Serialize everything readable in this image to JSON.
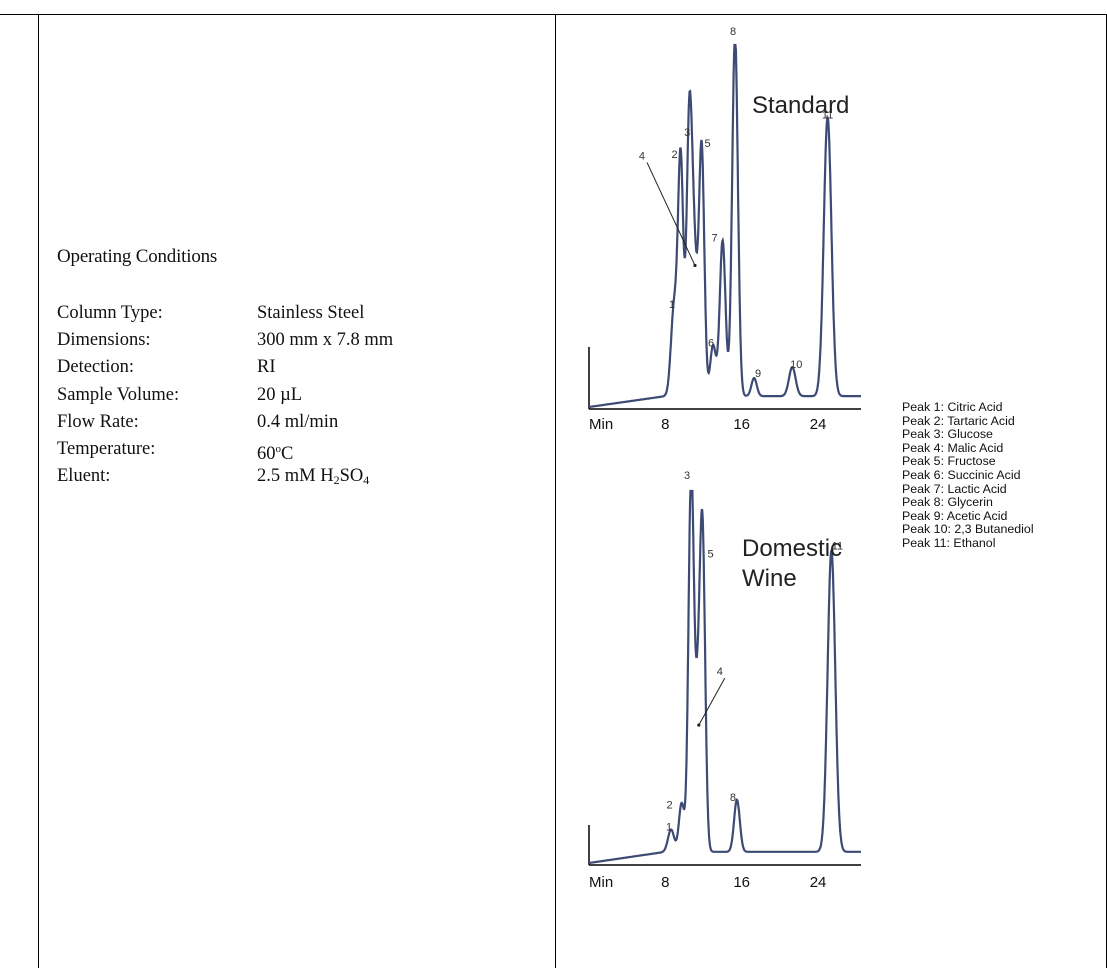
{
  "conditions": {
    "title": "Operating Conditions",
    "rows": [
      {
        "label": "Column Type:",
        "value": "Stainless Steel"
      },
      {
        "label": "Dimensions:",
        "value": "300 mm x 7.8 mm"
      },
      {
        "label": "Detection:",
        "value": "RI"
      },
      {
        "label": "Sample Volume:",
        "value": "20 µL"
      },
      {
        "label": "Flow Rate:",
        "value": "0.4 ml/min"
      },
      {
        "label": "Temperature:",
        "value": "60",
        "value_sup": "o",
        "value_suffix": "C"
      },
      {
        "label": "Eluent:",
        "value": "2.5 mM H",
        "value_sub1": "2",
        "value_mid": "SO",
        "value_sub2": "4"
      }
    ]
  },
  "legend": [
    "Peak 1:  Citric Acid",
    "Peak 2:  Tartaric Acid",
    "Peak 3:  Glucose",
    "Peak 4:  Malic Acid",
    "Peak 5:  Fructose",
    "Peak 6:  Succinic Acid",
    "Peak 7:  Lactic Acid",
    "Peak 8:  Glycerin",
    "Peak 9:  Acetic Acid",
    "Peak 10:  2,3 Butanediol",
    "Peak 11:  Ethanol"
  ],
  "chart_data": [
    {
      "type": "line",
      "title": "Standard",
      "xlabel": "Min",
      "x_ticks": [
        8,
        16,
        24
      ],
      "xlim": [
        0,
        28.5
      ],
      "ylim": [
        0,
        1
      ],
      "color": "#3d4a73",
      "peaks": [
        {
          "label": "1",
          "x": 8.9,
          "y": 0.24
        },
        {
          "label": "2",
          "x": 9.6,
          "y": 0.66
        },
        {
          "label": "3",
          "x": 10.5,
          "y": 0.71
        },
        {
          "label": "4",
          "x": 11.0,
          "y": 0.38
        },
        {
          "label": "5",
          "x": 11.8,
          "y": 0.69
        },
        {
          "label": "6",
          "x": 13.0,
          "y": 0.14
        },
        {
          "label": "7",
          "x": 14.0,
          "y": 0.43
        },
        {
          "label": "8",
          "x": 15.3,
          "y": 1.0
        },
        {
          "label": "9",
          "x": 17.3,
          "y": 0.05
        },
        {
          "label": "10",
          "x": 21.3,
          "y": 0.08
        },
        {
          "label": "11",
          "x": 25.0,
          "y": 0.77
        }
      ]
    },
    {
      "type": "line",
      "title": "Domestic Wine",
      "xlabel": "Min",
      "x_ticks": [
        8,
        16,
        24
      ],
      "xlim": [
        0,
        28.5
      ],
      "ylim": [
        0,
        1
      ],
      "color": "#3d4a73",
      "peaks": [
        {
          "label": "1",
          "x": 8.6,
          "y": 0.06
        },
        {
          "label": "2",
          "x": 9.7,
          "y": 0.13
        },
        {
          "label": "3",
          "x": 10.7,
          "y": 1.0
        },
        {
          "label": "4",
          "x": 11.4,
          "y": 0.36
        },
        {
          "label": "5",
          "x": 11.9,
          "y": 0.8
        },
        {
          "label": "8",
          "x": 15.5,
          "y": 0.14
        },
        {
          "label": "11",
          "x": 25.4,
          "y": 0.81
        }
      ]
    }
  ]
}
